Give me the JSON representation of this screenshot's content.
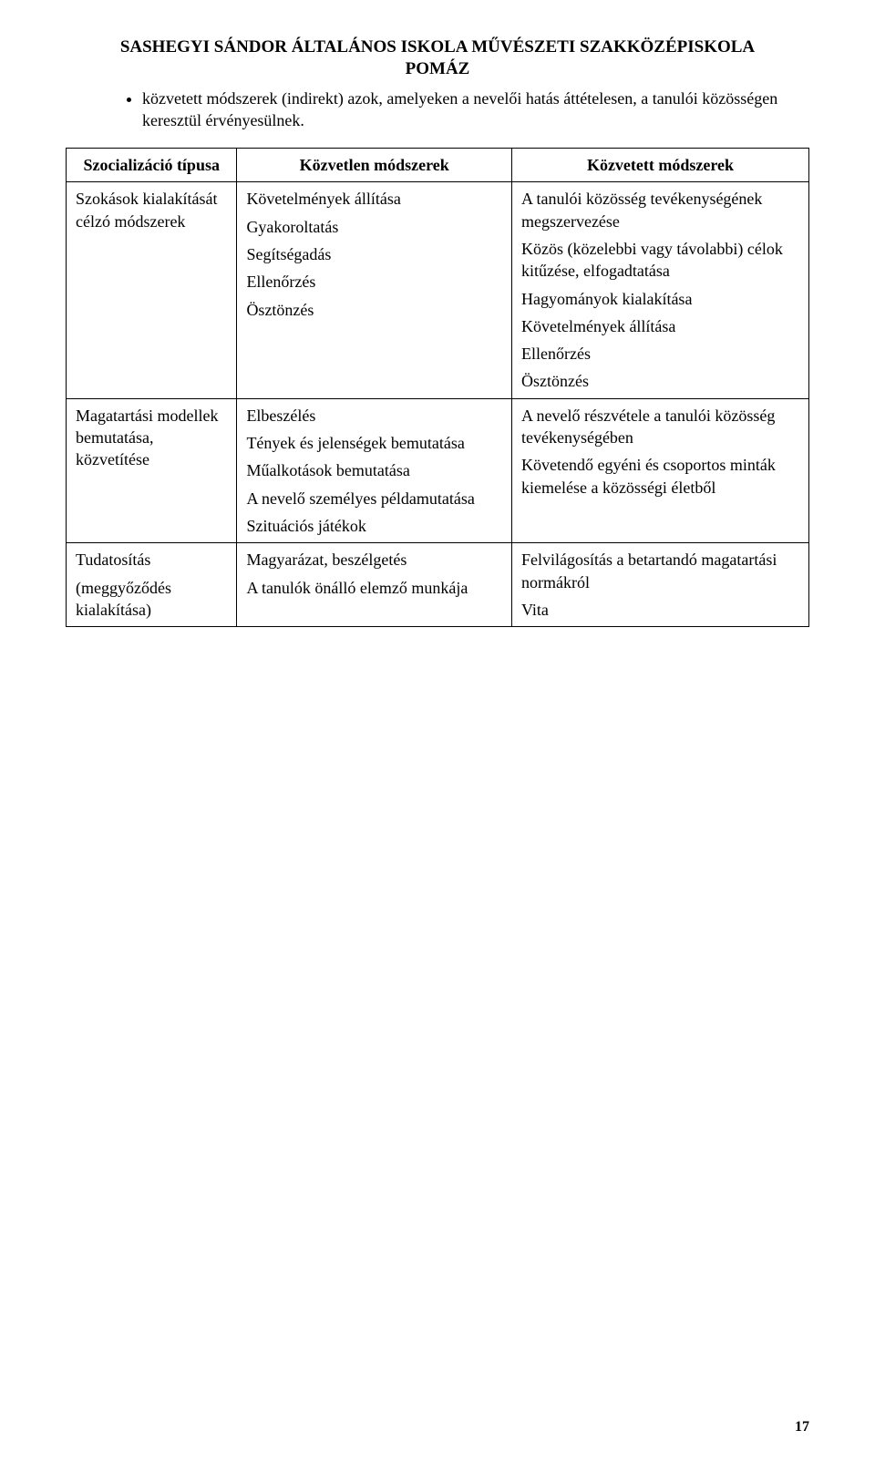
{
  "header": {
    "line1": "SASHEGYI SÁNDOR ÁLTALÁNOS ISKOLA MŰVÉSZETI SZAKKÖZÉPISKOLA",
    "line2": "POMÁZ"
  },
  "bullet": "közvetett módszerek (indirekt) azok, amelyeken a nevelői hatás áttételesen, a tanulói közösségen keresztül érvényesülnek.",
  "table": {
    "head": {
      "c1": "Szocializáció típusa",
      "c2": "Közvetlen módszerek",
      "c3": "Közvetett módszerek"
    },
    "rows": [
      {
        "c1": [
          "Szokások kialakítását célzó módszerek"
        ],
        "c2": [
          "Követelmények állítása",
          "Gyakoroltatás",
          "Segítségadás",
          "Ellenőrzés",
          "Ösztönzés"
        ],
        "c3": [
          "A tanulói közösség tevékenységének megszervezése",
          "Közös (közelebbi vagy távolabbi) célok kitűzése, elfogadtatása",
          "Hagyományok kialakítása",
          "Követelmények állítása",
          "Ellenőrzés",
          "Ösztönzés"
        ]
      },
      {
        "c1": [
          "Magatartási modellek bemutatása, közvetítése"
        ],
        "c2": [
          "Elbeszélés",
          "Tények és jelenségek bemutatása",
          "Műalkotások bemutatása",
          "A nevelő személyes példamutatása",
          "Szituációs játékok"
        ],
        "c3": [
          "A nevelő részvétele a tanulói közösség tevékenységében",
          "Követendő egyéni és csoportos minták kiemelése a közösségi életből"
        ]
      },
      {
        "c1": [
          "Tudatosítás",
          "(meggyőződés kialakítása)"
        ],
        "c2": [
          "Magyarázat, beszélgetés",
          "A tanulók önálló elemző munkája"
        ],
        "c3": [
          "Felvilágosítás a betartandó magatartási normákról",
          "Vita"
        ]
      }
    ]
  },
  "pageNumber": "17"
}
